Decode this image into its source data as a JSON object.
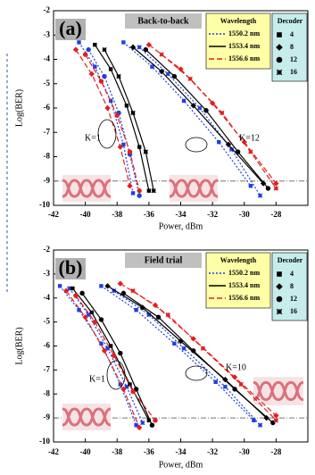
{
  "chart_data": [
    {
      "type": "line",
      "label": "(a)",
      "title": "Back-to-back",
      "xlabel": "Power, dBm",
      "ylabel": "Log(BER)",
      "xlim": [
        -42,
        -26
      ],
      "ylim": [
        -10,
        -2
      ],
      "xticks": [
        -42,
        -40,
        -38,
        -36,
        -34,
        -32,
        -30,
        -28
      ],
      "yticks": [
        -2,
        -3,
        -4,
        -5,
        -6,
        -7,
        -8,
        -9,
        -10
      ],
      "threshold": -9,
      "annotations": [
        "K=1",
        "K=12"
      ],
      "legend": {
        "title": "Wavelength",
        "items": [
          {
            "name": "1550.2 nm",
            "color": "#1f3fe0",
            "dash": "dotted"
          },
          {
            "name": "1553.4 nm",
            "color": "#000000",
            "dash": "solid"
          },
          {
            "name": "1556.6 nm",
            "color": "#e02020",
            "dash": "dashed"
          }
        ]
      },
      "marker_legend": {
        "title": "Decoder",
        "items": [
          {
            "name": "4",
            "marker": "square"
          },
          {
            "name": "8",
            "marker": "diamond"
          },
          {
            "name": "12",
            "marker": "circle"
          },
          {
            "name": "16",
            "marker": "star"
          }
        ]
      },
      "series": [
        {
          "name": "1550.2 nm",
          "decoder": "4",
          "x": [
            -40.4,
            -39.4,
            -38.4,
            -37.6,
            -37.0
          ],
          "values": [
            -3.3,
            -4.3,
            -5.7,
            -7.5,
            -9.5
          ]
        },
        {
          "name": "1550.2 nm",
          "decoder": "12",
          "x": [
            -39.8,
            -38.8,
            -37.9,
            -37.2,
            -36.6
          ],
          "values": [
            -3.6,
            -4.7,
            -6.2,
            -7.9,
            -9.6
          ]
        },
        {
          "name": "1553.4 nm",
          "decoder": "4",
          "x": [
            -39.4,
            -38.4,
            -37.4,
            -36.6,
            -36.0
          ],
          "values": [
            -3.4,
            -4.4,
            -5.9,
            -7.6,
            -9.4
          ]
        },
        {
          "name": "1553.4 nm",
          "decoder": "16",
          "x": [
            -38.8,
            -37.9,
            -37.0,
            -36.2,
            -35.7
          ],
          "values": [
            -3.6,
            -4.7,
            -6.2,
            -7.8,
            -9.4
          ]
        },
        {
          "name": "1556.6 nm",
          "decoder": "8",
          "x": [
            -40.6,
            -39.6,
            -38.6,
            -37.8,
            -37.2
          ],
          "values": [
            -3.6,
            -4.6,
            -6.0,
            -7.6,
            -9.2
          ]
        },
        {
          "name": "1556.6 nm",
          "decoder": "12",
          "x": [
            -40.0,
            -39.0,
            -38.0,
            -37.2,
            -36.6
          ],
          "values": [
            -3.8,
            -4.9,
            -6.3,
            -7.8,
            -9.4
          ]
        },
        {
          "name": "1550.2 nm",
          "decoder": "4",
          "x": [
            -37.6,
            -35.8,
            -33.8,
            -31.6,
            -29.6
          ],
          "values": [
            -3.3,
            -4.3,
            -5.7,
            -7.4,
            -9.2
          ]
        },
        {
          "name": "1550.2 nm",
          "decoder": "16",
          "x": [
            -36.6,
            -34.8,
            -32.8,
            -30.8,
            -29.0
          ],
          "values": [
            -3.5,
            -4.6,
            -6.0,
            -7.7,
            -9.6
          ]
        },
        {
          "name": "1553.4 nm",
          "decoder": "8",
          "x": [
            -37.0,
            -35.2,
            -33.2,
            -31.0,
            -28.8
          ],
          "values": [
            -3.5,
            -4.5,
            -5.9,
            -7.5,
            -9.1
          ]
        },
        {
          "name": "1553.4 nm",
          "decoder": "12",
          "x": [
            -36.2,
            -34.4,
            -32.4,
            -30.4,
            -28.5
          ],
          "values": [
            -3.6,
            -4.7,
            -6.1,
            -7.8,
            -9.3
          ]
        },
        {
          "name": "1556.6 nm",
          "decoder": "8",
          "x": [
            -36.0,
            -34.0,
            -32.0,
            -30.0,
            -28.0
          ],
          "values": [
            -3.4,
            -4.4,
            -5.8,
            -7.4,
            -9.1
          ]
        },
        {
          "name": "1556.6 nm",
          "decoder": "16",
          "x": [
            -35.2,
            -33.4,
            -31.4,
            -29.6,
            -28.0
          ],
          "values": [
            -3.8,
            -4.8,
            -6.2,
            -7.8,
            -9.3
          ]
        }
      ]
    },
    {
      "type": "line",
      "label": "(b)",
      "title": "Field trial",
      "xlabel": "Power, dBm",
      "ylabel": "Log(BER)",
      "xlim": [
        -42,
        -26
      ],
      "ylim": [
        -10,
        -2
      ],
      "xticks": [
        -42,
        -40,
        -38,
        -36,
        -34,
        -32,
        -30,
        -28
      ],
      "yticks": [
        -2,
        -3,
        -4,
        -5,
        -6,
        -7,
        -8,
        -9,
        -10
      ],
      "threshold": -9,
      "annotations": [
        "K=1",
        "K=10"
      ],
      "legend": {
        "title": "Wavelength",
        "items": [
          {
            "name": "1550.2 nm",
            "color": "#1f3fe0",
            "dash": "dotted"
          },
          {
            "name": "1553.4 nm",
            "color": "#000000",
            "dash": "solid"
          },
          {
            "name": "1556.6 nm",
            "color": "#e02020",
            "dash": "dashed"
          }
        ]
      },
      "marker_legend": {
        "title": "Decoder",
        "items": [
          {
            "name": "4",
            "marker": "square"
          },
          {
            "name": "8",
            "marker": "diamond"
          },
          {
            "name": "12",
            "marker": "circle"
          },
          {
            "name": "16",
            "marker": "star"
          }
        ]
      },
      "series": [
        {
          "name": "1550.2 nm",
          "decoder": "4",
          "x": [
            -41.6,
            -40.4,
            -39.0,
            -37.8,
            -36.8
          ],
          "values": [
            -3.5,
            -4.5,
            -5.9,
            -7.6,
            -9.3
          ]
        },
        {
          "name": "1550.2 nm",
          "decoder": "16",
          "x": [
            -41.0,
            -39.8,
            -38.6,
            -37.4,
            -36.4
          ],
          "values": [
            -3.6,
            -4.7,
            -6.1,
            -7.7,
            -9.2
          ]
        },
        {
          "name": "1553.4 nm",
          "decoder": "4",
          "x": [
            -40.8,
            -39.6,
            -38.4,
            -37.2,
            -36.0
          ],
          "values": [
            -3.6,
            -4.6,
            -6.0,
            -7.6,
            -9.1
          ]
        },
        {
          "name": "1553.4 nm",
          "decoder": "12",
          "x": [
            -40.2,
            -39.0,
            -37.8,
            -36.8,
            -35.8
          ],
          "values": [
            -3.8,
            -4.9,
            -6.3,
            -7.8,
            -9.3
          ]
        },
        {
          "name": "1556.6 nm",
          "decoder": "8",
          "x": [
            -41.2,
            -40.0,
            -38.8,
            -37.6,
            -36.6
          ],
          "values": [
            -3.7,
            -4.8,
            -6.2,
            -7.8,
            -9.4
          ]
        },
        {
          "name": "1556.6 nm",
          "decoder": "12",
          "x": [
            -40.6,
            -39.4,
            -38.2,
            -37.0,
            -35.6
          ],
          "values": [
            -3.9,
            -5.0,
            -6.4,
            -7.9,
            -9.1
          ]
        },
        {
          "name": "1550.2 nm",
          "decoder": "4",
          "x": [
            -39.0,
            -36.8,
            -34.4,
            -31.8,
            -29.4
          ],
          "values": [
            -3.5,
            -4.5,
            -5.9,
            -7.5,
            -9.1
          ]
        },
        {
          "name": "1550.2 nm",
          "decoder": "16",
          "x": [
            -38.2,
            -36.0,
            -33.8,
            -31.2,
            -29.0
          ],
          "values": [
            -3.7,
            -4.7,
            -6.1,
            -7.7,
            -9.3
          ]
        },
        {
          "name": "1553.4 nm",
          "decoder": "8",
          "x": [
            -38.6,
            -36.4,
            -34.0,
            -31.2,
            -28.6
          ],
          "values": [
            -3.5,
            -4.4,
            -5.8,
            -7.4,
            -9.0
          ]
        },
        {
          "name": "1553.4 nm",
          "decoder": "12",
          "x": [
            -37.6,
            -35.4,
            -33.2,
            -30.6,
            -28.2
          ],
          "values": [
            -3.8,
            -4.8,
            -6.2,
            -7.8,
            -9.2
          ]
        },
        {
          "name": "1556.6 nm",
          "decoder": "8",
          "x": [
            -37.8,
            -35.6,
            -33.2,
            -30.6,
            -28.0
          ],
          "values": [
            -3.4,
            -4.3,
            -5.7,
            -7.3,
            -8.9
          ]
        },
        {
          "name": "1556.6 nm",
          "decoder": "16",
          "x": [
            -37.0,
            -34.8,
            -32.6,
            -30.2,
            -28.0
          ],
          "values": [
            -3.7,
            -4.7,
            -6.1,
            -7.6,
            -9.1
          ]
        }
      ]
    }
  ]
}
